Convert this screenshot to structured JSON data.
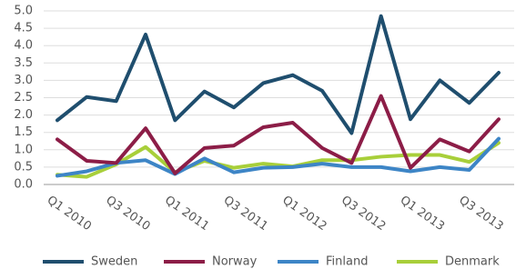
{
  "chart_data": {
    "type": "line",
    "categories": [
      "Q1 2010",
      null,
      "Q3 2010",
      null,
      "Q1 2011",
      null,
      "Q3 2011",
      null,
      "Q1 2012",
      null,
      "Q3 2012",
      null,
      "Q1 2013",
      null,
      "Q3 2013",
      null
    ],
    "series": [
      {
        "name": "Sweden",
        "color": "#1f4e6e",
        "values": [
          1.85,
          2.52,
          2.4,
          4.32,
          1.85,
          2.68,
          2.22,
          2.92,
          3.15,
          2.7,
          1.48,
          4.85,
          1.88,
          3.0,
          2.35,
          3.22
        ]
      },
      {
        "name": "Norway",
        "color": "#8c1d47",
        "values": [
          1.3,
          0.68,
          0.62,
          1.62,
          0.32,
          1.05,
          1.12,
          1.65,
          1.78,
          1.05,
          0.62,
          2.55,
          0.48,
          1.3,
          0.95,
          1.88
        ]
      },
      {
        "name": "Finland",
        "color": "#3d85c6",
        "values": [
          0.25,
          0.38,
          0.62,
          0.7,
          0.3,
          0.75,
          0.35,
          0.48,
          0.5,
          0.6,
          0.5,
          0.5,
          0.38,
          0.5,
          0.42,
          1.32
        ]
      },
      {
        "name": "Denmark",
        "color": "#a8cf3a",
        "values": [
          0.28,
          0.22,
          0.58,
          1.08,
          0.35,
          0.68,
          0.48,
          0.6,
          0.52,
          0.7,
          0.7,
          0.8,
          0.85,
          0.85,
          0.65,
          1.2
        ]
      }
    ],
    "ylim": [
      0,
      5
    ],
    "yticks": [
      {
        "value": 0,
        "label": "0.0"
      },
      0.5,
      {
        "value": 1,
        "label": "1.0"
      },
      1.5,
      {
        "value": 2,
        "label": "2.0"
      },
      2.5,
      {
        "value": 3,
        "label": "3.0"
      },
      3.5,
      {
        "value": 4,
        "label": "4.0"
      },
      4.5,
      {
        "value": 5,
        "label": "5.0"
      }
    ],
    "grid": true,
    "legend": "bottom"
  }
}
